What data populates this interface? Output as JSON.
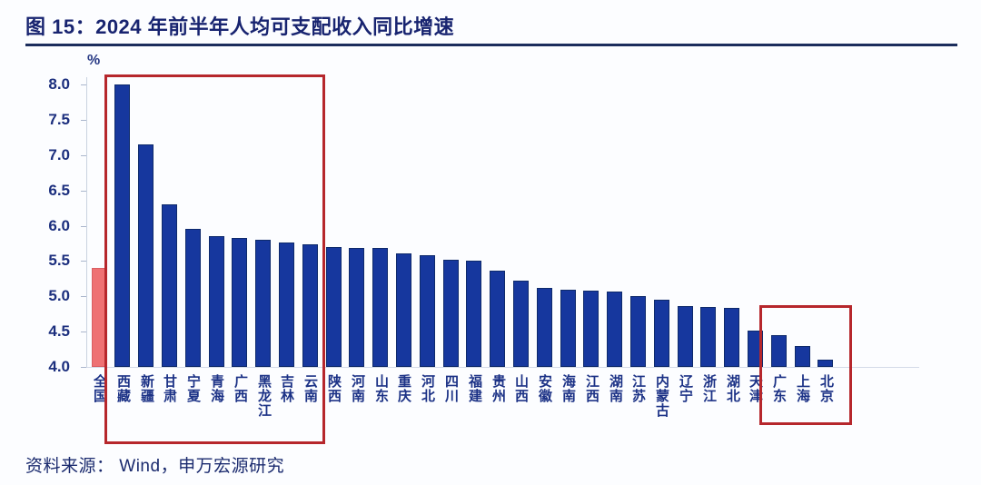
{
  "page": {
    "title": "图 15：2024 年前半年人均可支配收入同比增速",
    "source_note": "资料来源： Wind，申万宏源研究"
  },
  "colors": {
    "title_navy": "#182470",
    "axis_text_navy": "#1c2f7e",
    "bar_blue": "#16379e",
    "bar_red": "#ee7173",
    "highlight_box_red": "#b6272c",
    "title_rule_navy": "#1b2d5c"
  },
  "chart_data": {
    "type": "bar",
    "title": "2024 年前半年人均可支配收入同比增速",
    "unit_label": "%",
    "ylim": [
      4.0,
      8.0
    ],
    "yticks": [
      8.0,
      7.5,
      7.0,
      6.5,
      6.0,
      5.5,
      5.0,
      4.5,
      4.0
    ],
    "grid": false,
    "legend": false,
    "national_category": "全国",
    "categories": [
      "全国",
      "西藏",
      "新疆",
      "甘肃",
      "宁夏",
      "青海",
      "广西",
      "黑龙江",
      "吉林",
      "云南",
      "陕西",
      "河南",
      "山东",
      "重庆",
      "河北",
      "四川",
      "福建",
      "贵州",
      "山西",
      "安徽",
      "海南",
      "江西",
      "湖南",
      "江苏",
      "内蒙古",
      "辽宁",
      "浙江",
      "湖北",
      "天津",
      "广东",
      "上海",
      "北京"
    ],
    "values": [
      5.4,
      8.0,
      7.15,
      6.3,
      5.95,
      5.85,
      5.82,
      5.8,
      5.76,
      5.73,
      5.7,
      5.69,
      5.68,
      5.61,
      5.58,
      5.52,
      5.5,
      5.36,
      5.22,
      5.12,
      5.09,
      5.08,
      5.07,
      5.0,
      4.95,
      4.86,
      4.85,
      4.84,
      4.52,
      4.45,
      4.3,
      4.1
    ],
    "highlight_groups": [
      {
        "from": "西藏",
        "to": "云南"
      },
      {
        "from": "广东",
        "to": "北京"
      }
    ]
  }
}
